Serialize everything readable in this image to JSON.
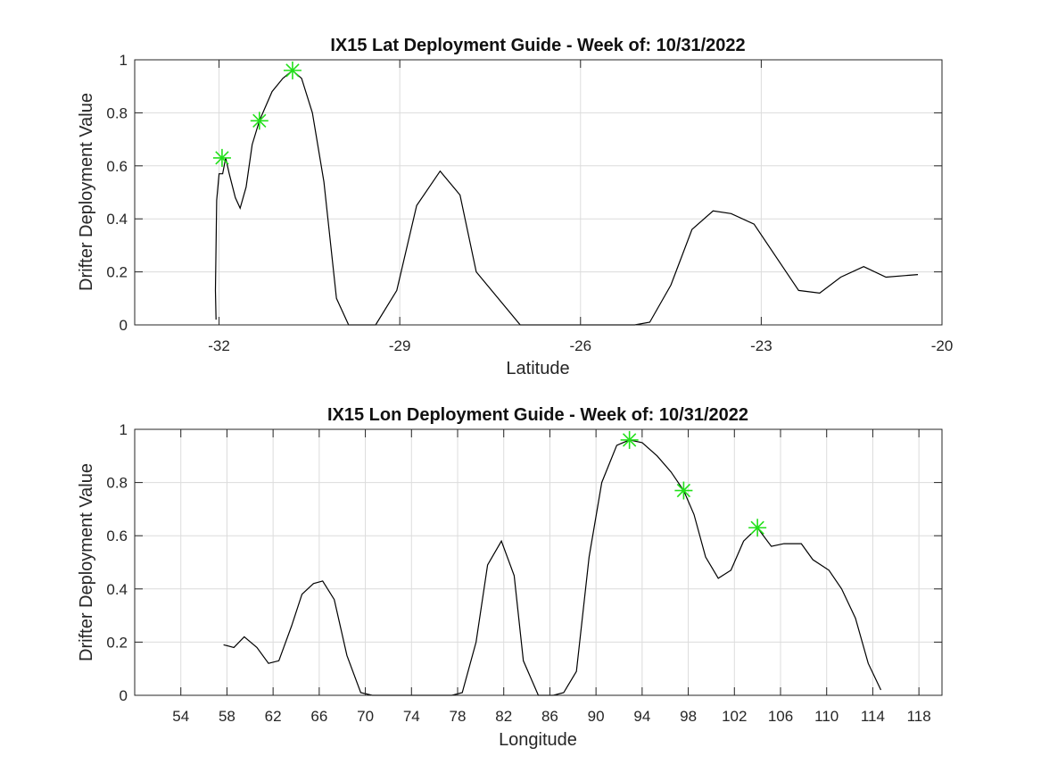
{
  "chart_data": [
    {
      "type": "line",
      "title": "IX15 Lat Deployment Guide - Week of: 10/31/2022",
      "xlabel": "Latitude",
      "ylabel": "Drifter Deployment Value",
      "xlim": [
        -33.4,
        -20
      ],
      "ylim": [
        0,
        1
      ],
      "xticks": [
        -32,
        -29,
        -26,
        -23,
        -20
      ],
      "xtick_labels": [
        "-32",
        "-29",
        "-26",
        "-23",
        "-20"
      ],
      "yticks": [
        0,
        0.2,
        0.4,
        0.6,
        0.8,
        1
      ],
      "ytick_labels": [
        "0",
        "0.2",
        "0.4",
        "0.6",
        "0.8",
        "1"
      ],
      "grid": true,
      "series": [
        {
          "color": "#000000",
          "x": [
            -32.05,
            -32.06,
            -32.04,
            -32.0,
            -31.94,
            -31.89,
            -31.83,
            -31.73,
            -31.65,
            -31.55,
            -31.45,
            -31.33,
            -31.12,
            -30.94,
            -30.78,
            -30.63,
            -30.45,
            -30.26,
            -30.05,
            -29.85,
            -29.4,
            -29.05,
            -28.72,
            -28.33,
            -28.0,
            -27.73,
            -27.0,
            -25.1,
            -24.85,
            -24.5,
            -24.15,
            -23.8,
            -23.5,
            -23.12,
            -22.38,
            -22.03,
            -21.68,
            -21.3,
            -20.93,
            -20.4
          ],
          "y": [
            0.02,
            0.13,
            0.47,
            0.57,
            0.57,
            0.63,
            0.57,
            0.48,
            0.44,
            0.52,
            0.68,
            0.77,
            0.88,
            0.93,
            0.96,
            0.93,
            0.8,
            0.54,
            0.1,
            0,
            0,
            0.13,
            0.45,
            0.58,
            0.49,
            0.2,
            0,
            0,
            0.01,
            0.15,
            0.36,
            0.43,
            0.42,
            0.38,
            0.13,
            0.12,
            0.18,
            0.22,
            0.18,
            0.19
          ]
        }
      ],
      "markers": {
        "color": "#22e01a",
        "x": [
          -31.95,
          -31.33,
          -30.78
        ],
        "y": [
          0.63,
          0.77,
          0.96
        ]
      }
    },
    {
      "type": "line",
      "title": "IX15 Lon Deployment Guide - Week of: 10/31/2022",
      "xlabel": "Longitude",
      "ylabel": "Drifter Deployment Value",
      "xlim": [
        50,
        120
      ],
      "ylim": [
        0,
        1
      ],
      "xticks": [
        54,
        58,
        62,
        66,
        70,
        74,
        78,
        82,
        86,
        90,
        94,
        98,
        102,
        106,
        110,
        114,
        118
      ],
      "xtick_labels": [
        "54",
        "58",
        "62",
        "66",
        "70",
        "74",
        "78",
        "82",
        "86",
        "90",
        "94",
        "98",
        "102",
        "106",
        "110",
        "114",
        "118"
      ],
      "yticks": [
        0,
        0.2,
        0.4,
        0.6,
        0.8,
        1
      ],
      "ytick_labels": [
        "0",
        "0.2",
        "0.4",
        "0.6",
        "0.8",
        "1"
      ],
      "grid": true,
      "series": [
        {
          "color": "#000000",
          "x": [
            57.7,
            58.6,
            59.5,
            60.6,
            61.6,
            62.5,
            63.6,
            64.5,
            65.5,
            66.3,
            67.3,
            68.4,
            69.6,
            70.6,
            77.5,
            78.4,
            79.6,
            80.6,
            81.8,
            82.9,
            83.7,
            85.0,
            86.3,
            87.2,
            88.3,
            89.4,
            90.5,
            91.8,
            92.9,
            94.0,
            95.3,
            96.5,
            97.6,
            98.5,
            99.5,
            100.6,
            101.7,
            102.8,
            104.0,
            105.2,
            106.3,
            107.8,
            108.8,
            110.2,
            111.3,
            112.5,
            113.6,
            114.7
          ],
          "y": [
            0.19,
            0.18,
            0.22,
            0.18,
            0.12,
            0.13,
            0.26,
            0.38,
            0.42,
            0.43,
            0.36,
            0.15,
            0.01,
            0,
            0,
            0.01,
            0.2,
            0.49,
            0.58,
            0.45,
            0.13,
            0,
            0,
            0.01,
            0.09,
            0.52,
            0.8,
            0.94,
            0.96,
            0.95,
            0.9,
            0.84,
            0.77,
            0.68,
            0.52,
            0.44,
            0.47,
            0.58,
            0.63,
            0.56,
            0.57,
            0.57,
            0.51,
            0.47,
            0.4,
            0.29,
            0.12,
            0.02
          ]
        }
      ],
      "markers": {
        "color": "#22e01a",
        "x": [
          92.9,
          97.6,
          104.0
        ],
        "y": [
          0.96,
          0.77,
          0.63
        ]
      }
    }
  ]
}
